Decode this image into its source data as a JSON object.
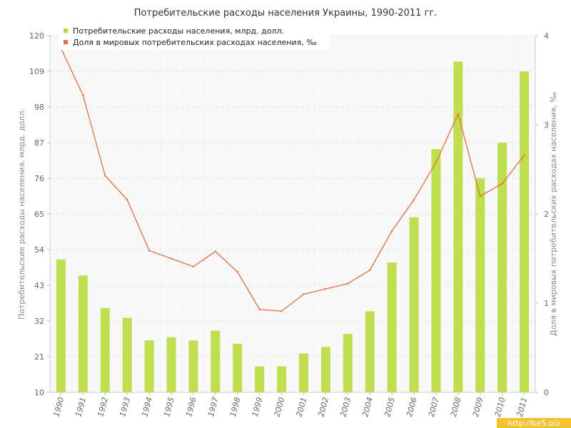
{
  "chart_data": {
    "type": "bar",
    "title": "Потребительские расходы населения Украины, 1990-2011 гг.",
    "categories": [
      "1990",
      "1991",
      "1992",
      "1993",
      "1994",
      "1995",
      "1996",
      "1997",
      "1998",
      "1999",
      "2000",
      "2001",
      "2002",
      "2003",
      "2004",
      "2005",
      "2006",
      "2007",
      "2008",
      "2009",
      "2010",
      "2011"
    ],
    "series": [
      {
        "name": "Потребительские расходы населения, млрд. долл.",
        "type": "bar",
        "axis": "left",
        "color": "#b5d932",
        "values": [
          51,
          46,
          36,
          33,
          26,
          27,
          26,
          29,
          25,
          18,
          18,
          22,
          24,
          28,
          35,
          50,
          64,
          85,
          112,
          76,
          87,
          109
        ]
      },
      {
        "name": "Доля в мировых потребительских расходах населения, ‰",
        "type": "line",
        "axis": "right",
        "color": "#e07040",
        "values": [
          3.86,
          3.33,
          2.43,
          2.16,
          1.59,
          1.5,
          1.41,
          1.58,
          1.35,
          0.93,
          0.91,
          1.1,
          1.16,
          1.22,
          1.37,
          1.81,
          2.16,
          2.58,
          3.12,
          2.2,
          2.34,
          2.66
        ]
      }
    ],
    "ylabel": "Потребительские расходы населения, млрд. долл.",
    "y2label": "Доля в мировых потребительских расходах населения, ‰",
    "ylim": [
      10,
      120
    ],
    "yticks": [
      10,
      21,
      32,
      43,
      54,
      65,
      76,
      87,
      98,
      109,
      120
    ],
    "y2lim": [
      0,
      4
    ],
    "y2ticks": [
      0,
      1,
      2,
      3,
      4
    ],
    "grid": true,
    "legend": "top-left"
  },
  "watermark": "http://be5.biz"
}
